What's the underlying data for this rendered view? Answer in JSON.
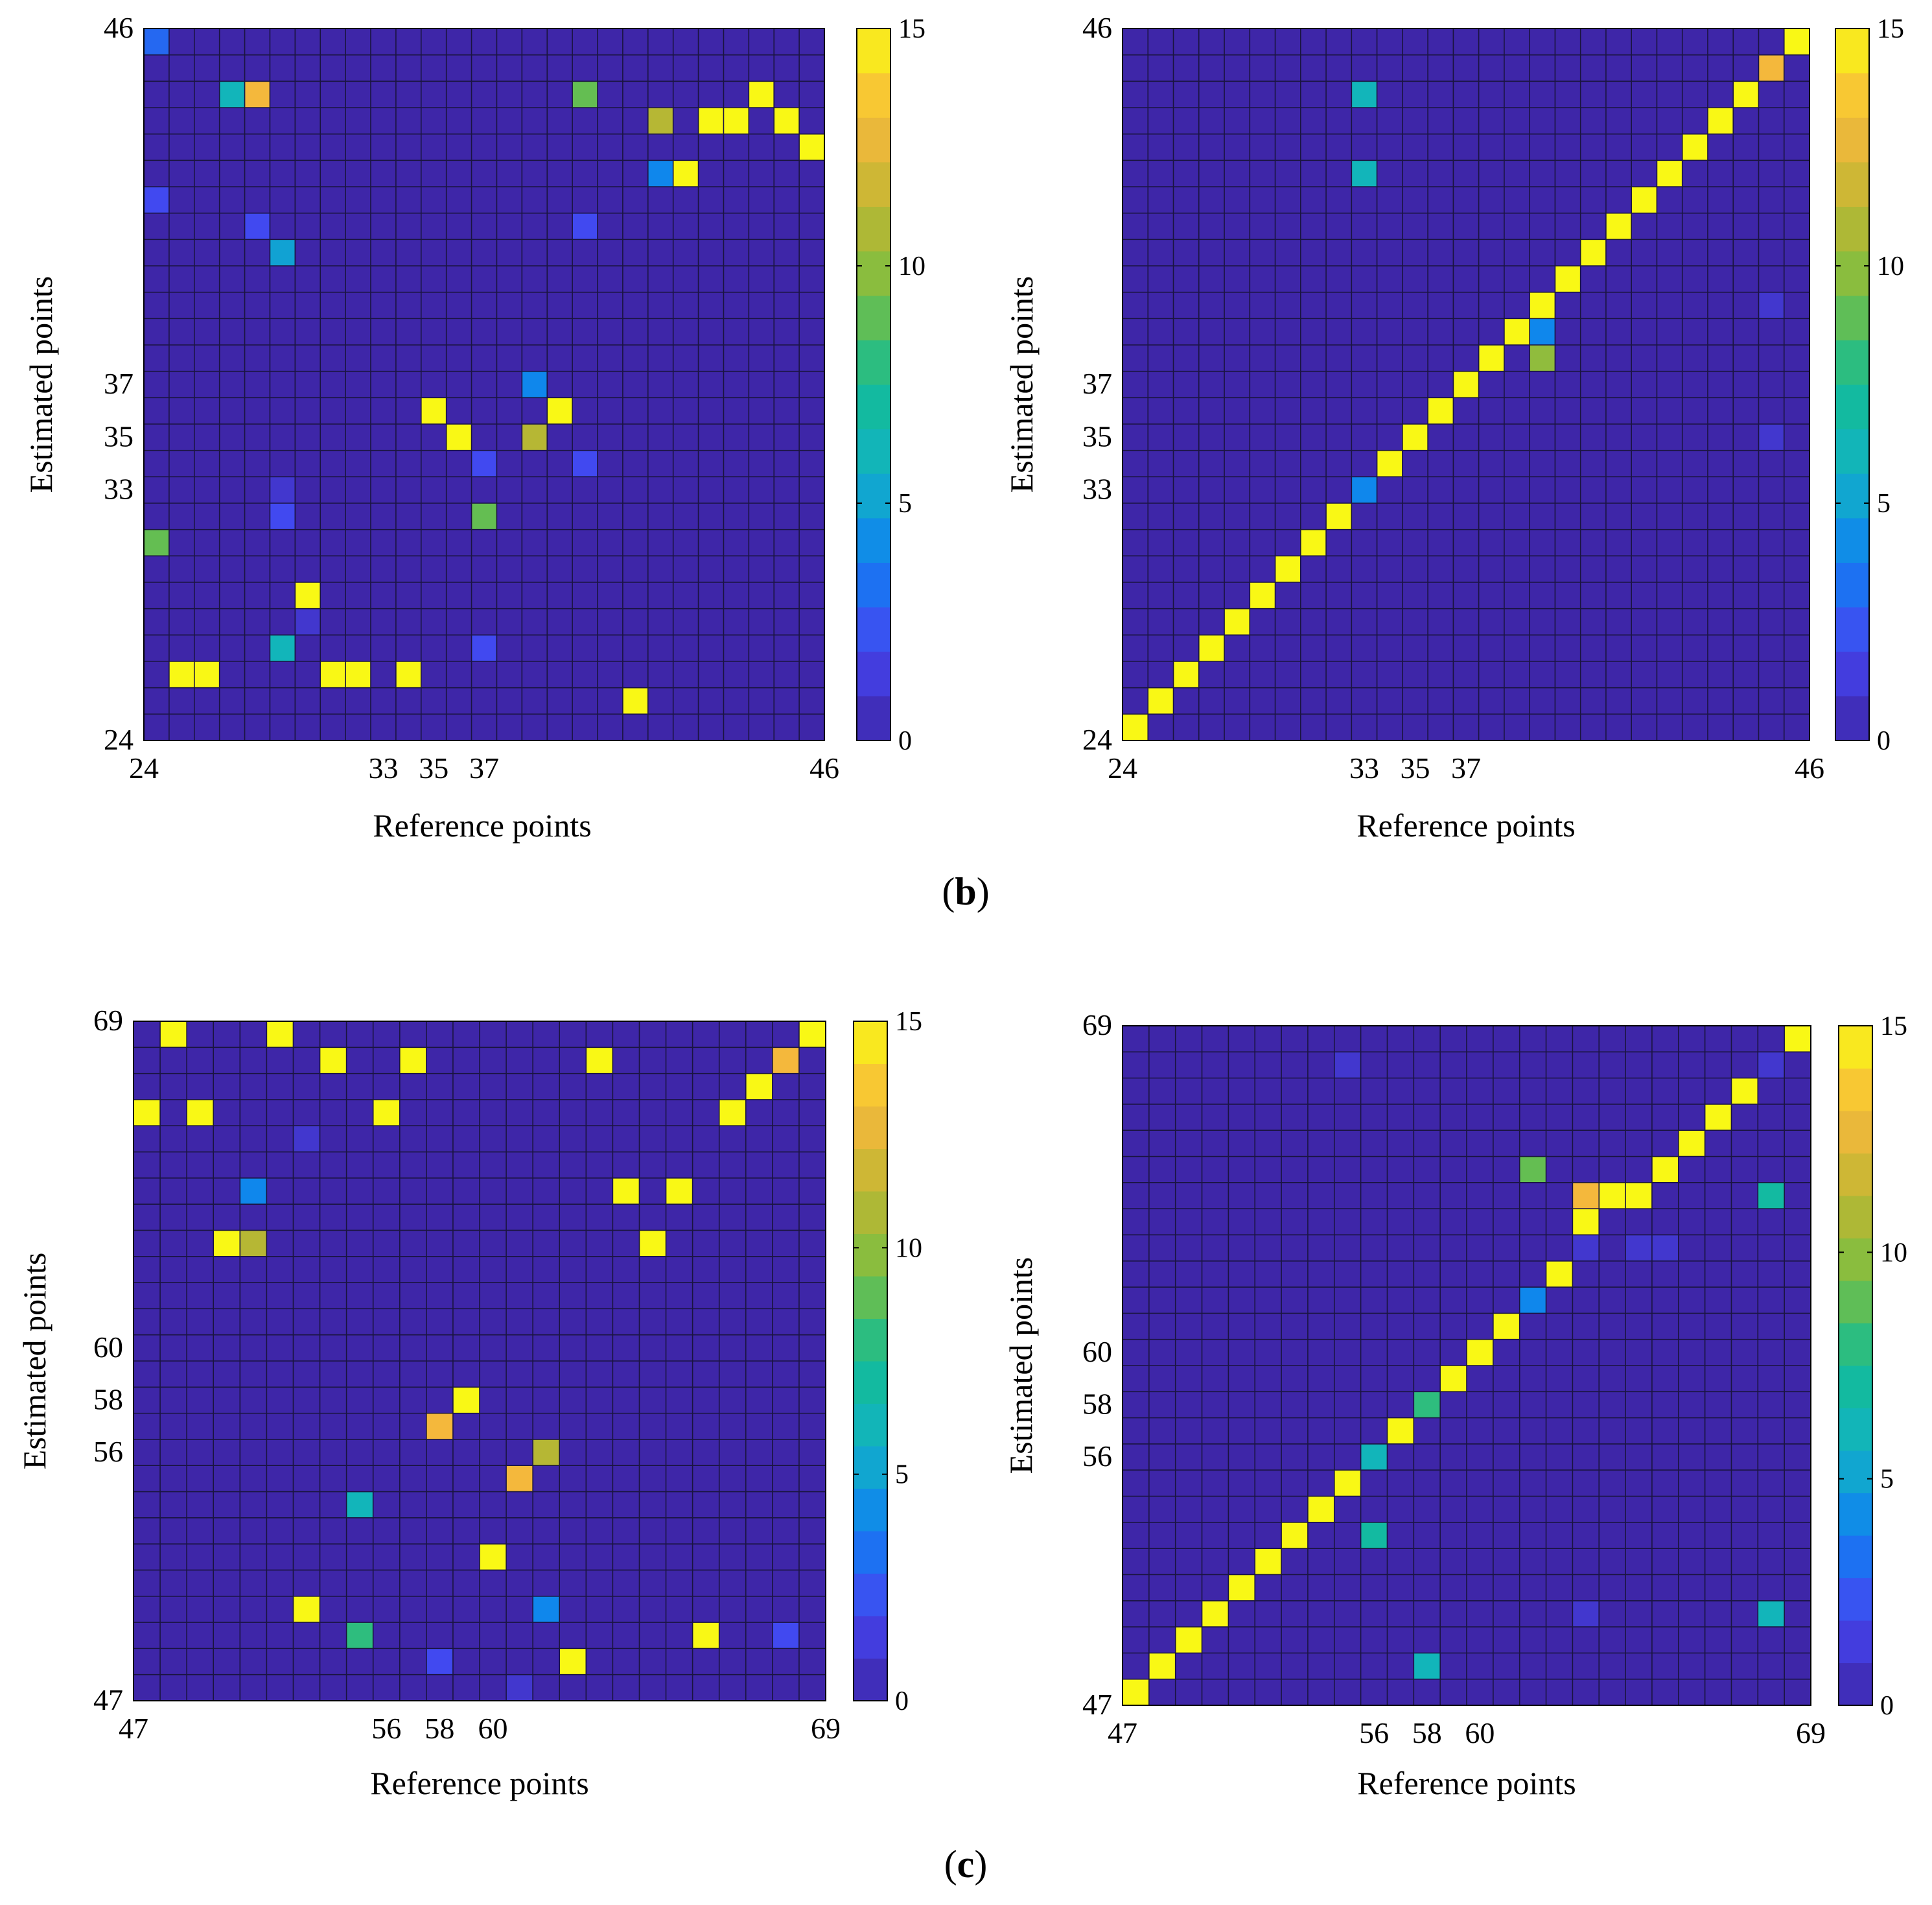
{
  "figure": {
    "captions": {
      "b": "b",
      "c": "c"
    }
  },
  "colormap": {
    "stops": [
      "#3e26a8",
      "#4545f0",
      "#0f80f2",
      "#12b3c4",
      "#13bc94",
      "#78bf42",
      "#c0b632",
      "#f8b83d",
      "#f9f815"
    ]
  },
  "chart_data": [
    {
      "id": "b-left",
      "type": "heatmap",
      "xlabel": "Reference points",
      "ylabel": "Estimated points",
      "xticks": [
        {
          "v": 24,
          "label": "24"
        },
        {
          "v": 33,
          "label": "33"
        },
        {
          "v": 35,
          "label": "35"
        },
        {
          "v": 37,
          "label": "37"
        },
        {
          "v": 46,
          "label": "46"
        }
      ],
      "yticks": [
        {
          "v": 24,
          "label": "24"
        },
        {
          "v": 33,
          "label": "33"
        },
        {
          "v": 35,
          "label": "35"
        },
        {
          "v": 37,
          "label": "37"
        },
        {
          "v": 46,
          "label": "46"
        }
      ],
      "range": [
        24,
        50
      ],
      "clim": [
        0,
        15
      ],
      "colorbar_ticks": [
        "0",
        "5",
        "10",
        "15"
      ],
      "background_value": 0,
      "cells": [
        {
          "x": 24,
          "y": 50,
          "v": 3
        },
        {
          "x": 27,
          "y": 48,
          "v": 6
        },
        {
          "x": 28,
          "y": 48,
          "v": 13
        },
        {
          "x": 41,
          "y": 48,
          "v": 9
        },
        {
          "x": 44,
          "y": 47,
          "v": 11
        },
        {
          "x": 46,
          "y": 47,
          "v": 15
        },
        {
          "x": 47,
          "y": 47,
          "v": 15
        },
        {
          "x": 48,
          "y": 48,
          "v": 15
        },
        {
          "x": 49,
          "y": 47,
          "v": 15
        },
        {
          "x": 50,
          "y": 46,
          "v": 15
        },
        {
          "x": 44,
          "y": 45,
          "v": 4
        },
        {
          "x": 45,
          "y": 45,
          "v": 15
        },
        {
          "x": 24,
          "y": 44,
          "v": 2
        },
        {
          "x": 28,
          "y": 43,
          "v": 2
        },
        {
          "x": 41,
          "y": 43,
          "v": 2
        },
        {
          "x": 29,
          "y": 42,
          "v": 5
        },
        {
          "x": 39,
          "y": 37,
          "v": 4
        },
        {
          "x": 35,
          "y": 36,
          "v": 15
        },
        {
          "x": 40,
          "y": 36,
          "v": 15
        },
        {
          "x": 36,
          "y": 35,
          "v": 15
        },
        {
          "x": 39,
          "y": 35,
          "v": 11
        },
        {
          "x": 37,
          "y": 34,
          "v": 2
        },
        {
          "x": 41,
          "y": 34,
          "v": 2
        },
        {
          "x": 29,
          "y": 33,
          "v": 1
        },
        {
          "x": 29,
          "y": 32,
          "v": 2
        },
        {
          "x": 37,
          "y": 32,
          "v": 9
        },
        {
          "x": 24,
          "y": 31,
          "v": 9
        },
        {
          "x": 30,
          "y": 29,
          "v": 15
        },
        {
          "x": 30,
          "y": 28,
          "v": 1
        },
        {
          "x": 29,
          "y": 27,
          "v": 6
        },
        {
          "x": 37,
          "y": 27,
          "v": 2
        },
        {
          "x": 25,
          "y": 26,
          "v": 15
        },
        {
          "x": 26,
          "y": 26,
          "v": 15
        },
        {
          "x": 31,
          "y": 26,
          "v": 15
        },
        {
          "x": 32,
          "y": 26,
          "v": 15
        },
        {
          "x": 34,
          "y": 26,
          "v": 15
        },
        {
          "x": 43,
          "y": 25,
          "v": 15
        }
      ]
    },
    {
      "id": "b-right",
      "type": "heatmap",
      "xlabel": "Reference points",
      "ylabel": "Estimated points",
      "xticks": [
        {
          "v": 24,
          "label": "24"
        },
        {
          "v": 33,
          "label": "33"
        },
        {
          "v": 35,
          "label": "35"
        },
        {
          "v": 37,
          "label": "37"
        },
        {
          "v": 46,
          "label": "46"
        }
      ],
      "yticks": [
        {
          "v": 24,
          "label": "24"
        },
        {
          "v": 33,
          "label": "33"
        },
        {
          "v": 35,
          "label": "35"
        },
        {
          "v": 37,
          "label": "37"
        },
        {
          "v": 46,
          "label": "46"
        }
      ],
      "range": [
        24,
        50
      ],
      "clim": [
        0,
        15
      ],
      "colorbar_ticks": [
        "0",
        "5",
        "10",
        "15"
      ],
      "background_value": 0,
      "cells": [
        {
          "x": 24,
          "y": 24,
          "v": 15
        },
        {
          "x": 25,
          "y": 25,
          "v": 15
        },
        {
          "x": 26,
          "y": 26,
          "v": 15
        },
        {
          "x": 27,
          "y": 27,
          "v": 15
        },
        {
          "x": 28,
          "y": 28,
          "v": 15
        },
        {
          "x": 29,
          "y": 29,
          "v": 15
        },
        {
          "x": 30,
          "y": 30,
          "v": 15
        },
        {
          "x": 31,
          "y": 31,
          "v": 15
        },
        {
          "x": 32,
          "y": 32,
          "v": 15
        },
        {
          "x": 33,
          "y": 33,
          "v": 4
        },
        {
          "x": 34,
          "y": 34,
          "v": 15
        },
        {
          "x": 35,
          "y": 35,
          "v": 15
        },
        {
          "x": 36,
          "y": 36,
          "v": 15
        },
        {
          "x": 37,
          "y": 37,
          "v": 15
        },
        {
          "x": 38,
          "y": 38,
          "v": 15
        },
        {
          "x": 39,
          "y": 39,
          "v": 15
        },
        {
          "x": 40,
          "y": 40,
          "v": 15
        },
        {
          "x": 41,
          "y": 41,
          "v": 15
        },
        {
          "x": 42,
          "y": 42,
          "v": 15
        },
        {
          "x": 43,
          "y": 43,
          "v": 15
        },
        {
          "x": 44,
          "y": 44,
          "v": 15
        },
        {
          "x": 45,
          "y": 45,
          "v": 15
        },
        {
          "x": 46,
          "y": 46,
          "v": 15
        },
        {
          "x": 47,
          "y": 47,
          "v": 15
        },
        {
          "x": 48,
          "y": 48,
          "v": 15
        },
        {
          "x": 49,
          "y": 49,
          "v": 13
        },
        {
          "x": 50,
          "y": 50,
          "v": 15
        },
        {
          "x": 40,
          "y": 39,
          "v": 4
        },
        {
          "x": 40,
          "y": 38,
          "v": 10
        },
        {
          "x": 33,
          "y": 48,
          "v": 6
        },
        {
          "x": 33,
          "y": 45,
          "v": 6
        },
        {
          "x": 49,
          "y": 40,
          "v": 1
        },
        {
          "x": 49,
          "y": 35,
          "v": 1
        }
      ]
    },
    {
      "id": "c-left",
      "type": "heatmap",
      "xlabel": "Reference points",
      "ylabel": "Estimated points",
      "xticks": [
        {
          "v": 47,
          "label": "47"
        },
        {
          "v": 56,
          "label": "56"
        },
        {
          "v": 58,
          "label": "58"
        },
        {
          "v": 60,
          "label": "60"
        },
        {
          "v": 69,
          "label": "69"
        }
      ],
      "yticks": [
        {
          "v": 47,
          "label": "47"
        },
        {
          "v": 56,
          "label": "56"
        },
        {
          "v": 58,
          "label": "58"
        },
        {
          "v": 60,
          "label": "60"
        },
        {
          "v": 69,
          "label": "69"
        }
      ],
      "range": [
        47,
        72
      ],
      "clim": [
        0,
        15
      ],
      "colorbar_ticks": [
        "0",
        "5",
        "10",
        "15"
      ],
      "background_value": 0,
      "cells": [
        {
          "x": 48,
          "y": 72,
          "v": 15
        },
        {
          "x": 52,
          "y": 72,
          "v": 15
        },
        {
          "x": 72,
          "y": 72,
          "v": 15
        },
        {
          "x": 54,
          "y": 71,
          "v": 15
        },
        {
          "x": 57,
          "y": 71,
          "v": 15
        },
        {
          "x": 64,
          "y": 71,
          "v": 15
        },
        {
          "x": 71,
          "y": 71,
          "v": 13
        },
        {
          "x": 70,
          "y": 70,
          "v": 15
        },
        {
          "x": 47,
          "y": 69,
          "v": 15
        },
        {
          "x": 49,
          "y": 69,
          "v": 15
        },
        {
          "x": 56,
          "y": 69,
          "v": 15
        },
        {
          "x": 69,
          "y": 69,
          "v": 15
        },
        {
          "x": 53,
          "y": 68,
          "v": 1
        },
        {
          "x": 51,
          "y": 66,
          "v": 4
        },
        {
          "x": 65,
          "y": 66,
          "v": 15
        },
        {
          "x": 67,
          "y": 66,
          "v": 15
        },
        {
          "x": 50,
          "y": 64,
          "v": 15
        },
        {
          "x": 51,
          "y": 64,
          "v": 11
        },
        {
          "x": 66,
          "y": 64,
          "v": 15
        },
        {
          "x": 59,
          "y": 58,
          "v": 15
        },
        {
          "x": 58,
          "y": 57,
          "v": 13
        },
        {
          "x": 62,
          "y": 56,
          "v": 11
        },
        {
          "x": 61,
          "y": 55,
          "v": 13
        },
        {
          "x": 55,
          "y": 54,
          "v": 6
        },
        {
          "x": 60,
          "y": 52,
          "v": 15
        },
        {
          "x": 53,
          "y": 50,
          "v": 15
        },
        {
          "x": 62,
          "y": 50,
          "v": 4
        },
        {
          "x": 55,
          "y": 49,
          "v": 8
        },
        {
          "x": 68,
          "y": 49,
          "v": 15
        },
        {
          "x": 71,
          "y": 49,
          "v": 2
        },
        {
          "x": 58,
          "y": 48,
          "v": 2
        },
        {
          "x": 63,
          "y": 48,
          "v": 15
        },
        {
          "x": 61,
          "y": 47,
          "v": 1
        }
      ]
    },
    {
      "id": "c-right",
      "type": "heatmap",
      "xlabel": "Reference points",
      "ylabel": "Estimated points",
      "xticks": [
        {
          "v": 47,
          "label": "47"
        },
        {
          "v": 56,
          "label": "56"
        },
        {
          "v": 58,
          "label": "58"
        },
        {
          "v": 60,
          "label": "60"
        },
        {
          "v": 69,
          "label": "69"
        }
      ],
      "yticks": [
        {
          "v": 47,
          "label": "47"
        },
        {
          "v": 56,
          "label": "56"
        },
        {
          "v": 58,
          "label": "58"
        },
        {
          "v": 60,
          "label": "60"
        },
        {
          "v": 69,
          "label": "69"
        }
      ],
      "range": [
        47,
        72
      ],
      "clim": [
        0,
        15
      ],
      "colorbar_ticks": [
        "0",
        "5",
        "10",
        "15"
      ],
      "background_value": 0,
      "cells": [
        {
          "x": 47,
          "y": 47,
          "v": 15
        },
        {
          "x": 48,
          "y": 48,
          "v": 15
        },
        {
          "x": 49,
          "y": 49,
          "v": 15
        },
        {
          "x": 50,
          "y": 50,
          "v": 15
        },
        {
          "x": 51,
          "y": 51,
          "v": 15
        },
        {
          "x": 52,
          "y": 52,
          "v": 15
        },
        {
          "x": 53,
          "y": 53,
          "v": 15
        },
        {
          "x": 54,
          "y": 54,
          "v": 15
        },
        {
          "x": 55,
          "y": 55,
          "v": 15
        },
        {
          "x": 56,
          "y": 56,
          "v": 6
        },
        {
          "x": 57,
          "y": 57,
          "v": 15
        },
        {
          "x": 58,
          "y": 58,
          "v": 8
        },
        {
          "x": 59,
          "y": 59,
          "v": 15
        },
        {
          "x": 60,
          "y": 60,
          "v": 15
        },
        {
          "x": 61,
          "y": 61,
          "v": 15
        },
        {
          "x": 62,
          "y": 62,
          "v": 4
        },
        {
          "x": 63,
          "y": 63,
          "v": 15
        },
        {
          "x": 64,
          "y": 65,
          "v": 15
        },
        {
          "x": 65,
          "y": 66,
          "v": 15
        },
        {
          "x": 66,
          "y": 66,
          "v": 15
        },
        {
          "x": 67,
          "y": 67,
          "v": 15
        },
        {
          "x": 68,
          "y": 68,
          "v": 15
        },
        {
          "x": 69,
          "y": 69,
          "v": 15
        },
        {
          "x": 70,
          "y": 70,
          "v": 15
        },
        {
          "x": 71,
          "y": 71,
          "v": 1
        },
        {
          "x": 72,
          "y": 72,
          "v": 15
        },
        {
          "x": 64,
          "y": 66,
          "v": 13
        },
        {
          "x": 62,
          "y": 67,
          "v": 9
        },
        {
          "x": 71,
          "y": 66,
          "v": 7
        },
        {
          "x": 64,
          "y": 64,
          "v": 1
        },
        {
          "x": 66,
          "y": 64,
          "v": 1
        },
        {
          "x": 67,
          "y": 64,
          "v": 1
        },
        {
          "x": 55,
          "y": 71,
          "v": 1
        },
        {
          "x": 56,
          "y": 53,
          "v": 7
        },
        {
          "x": 58,
          "y": 48,
          "v": 6
        },
        {
          "x": 64,
          "y": 50,
          "v": 1
        },
        {
          "x": 71,
          "y": 50,
          "v": 6
        }
      ]
    }
  ]
}
